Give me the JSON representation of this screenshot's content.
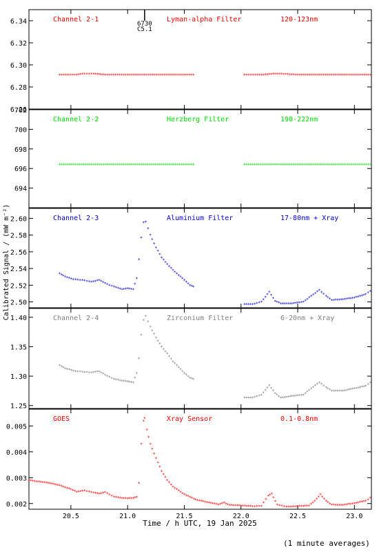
{
  "figure": {
    "ylabel": "Calibrated Signal / (mW m⁻²)",
    "xlabel": "Time / h UTC, 19 Jan 2025",
    "footnote": "(1 minute averages)",
    "event_marker": {
      "x": 21.15,
      "labels": [
        "6730",
        "C5.1"
      ]
    }
  },
  "chart_data": [
    {
      "type": "scatter",
      "title": "Channel 2-1",
      "subtitle": "Lyman-alpha Filter",
      "band": "120-123nm",
      "color": "#ff0000",
      "ylim": [
        6.26,
        6.35
      ],
      "yticks": [
        6.26,
        6.28,
        6.3,
        6.32,
        6.34
      ],
      "ytick_labels": [
        "6.26",
        "6.28",
        "6.30",
        "6.32",
        "6.34"
      ],
      "series": [
        {
          "x": [
            20.4,
            20.55,
            20.62,
            20.7,
            20.8,
            21.0,
            21.2,
            21.4,
            21.58,
            22.03,
            22.2,
            22.3,
            22.5,
            22.8,
            23.14
          ],
          "y": [
            6.291,
            6.291,
            6.292,
            6.292,
            6.291,
            6.291,
            6.291,
            6.291,
            6.291,
            6.291,
            6.291,
            6.292,
            6.291,
            6.291,
            6.291
          ]
        }
      ]
    },
    {
      "type": "scatter",
      "title": "Channel 2-2",
      "subtitle": "Herzberg Filter",
      "band": "190-222nm",
      "color": "#00e000",
      "ylim": [
        692,
        702
      ],
      "yticks": [
        694,
        696,
        698,
        700,
        702
      ],
      "ytick_labels": [
        "694",
        "696",
        "698",
        "700",
        "702"
      ],
      "series": [
        {
          "x": [
            20.4,
            20.7,
            21.0,
            21.3,
            21.58,
            22.03,
            22.3,
            22.6,
            22.9,
            23.14
          ],
          "y": [
            696.4,
            696.4,
            696.4,
            696.4,
            696.4,
            696.4,
            696.4,
            696.4,
            696.4,
            696.4
          ]
        }
      ]
    },
    {
      "type": "scatter",
      "title": "Channel 2-3",
      "subtitle": "Aluminium Filter",
      "band": "17-80nm + Xray",
      "color": "#0000d0",
      "ylim": [
        2.493,
        2.612
      ],
      "yticks": [
        2.5,
        2.52,
        2.54,
        2.56,
        2.58,
        2.6
      ],
      "ytick_labels": [
        "2.50",
        "2.52",
        "2.54",
        "2.56",
        "2.58",
        "2.60"
      ],
      "series": [
        {
          "x": [
            20.4,
            20.45,
            20.52,
            20.6,
            20.68,
            20.75,
            20.82,
            20.88,
            20.95,
            21.0,
            21.05,
            21.08,
            21.1,
            21.12,
            21.14,
            21.16,
            21.2,
            21.25,
            21.3,
            21.35,
            21.4,
            21.45,
            21.5,
            21.55,
            21.58,
            22.03,
            22.1,
            22.18,
            22.25,
            22.3,
            22.35,
            22.45,
            22.55,
            22.62,
            22.69,
            22.75,
            22.8,
            22.9,
            23.0,
            23.1,
            23.14
          ],
          "y": [
            2.534,
            2.53,
            2.527,
            2.526,
            2.524,
            2.526,
            2.521,
            2.518,
            2.515,
            2.516,
            2.515,
            2.528,
            2.551,
            2.577,
            2.595,
            2.596,
            2.58,
            2.565,
            2.553,
            2.545,
            2.538,
            2.532,
            2.526,
            2.52,
            2.518,
            2.497,
            2.497,
            2.5,
            2.512,
            2.501,
            2.498,
            2.498,
            2.5,
            2.507,
            2.514,
            2.507,
            2.502,
            2.503,
            2.505,
            2.509,
            2.513
          ]
        }
      ]
    },
    {
      "type": "scatter",
      "title": "Channel 2-4",
      "subtitle": "Zirconium Filter",
      "band": "6-20nm + Xray",
      "color": "#808080",
      "ylim": [
        1.245,
        1.415
      ],
      "yticks": [
        1.25,
        1.3,
        1.35,
        1.4
      ],
      "ytick_labels": [
        "1.25",
        "1.30",
        "1.35",
        "1.40"
      ],
      "series": [
        {
          "x": [
            20.4,
            20.45,
            20.52,
            20.6,
            20.68,
            20.75,
            20.82,
            20.88,
            20.95,
            21.0,
            21.05,
            21.08,
            21.1,
            21.12,
            21.14,
            21.16,
            21.2,
            21.25,
            21.3,
            21.35,
            21.4,
            21.45,
            21.5,
            21.55,
            21.58,
            22.03,
            22.1,
            22.18,
            22.25,
            22.3,
            22.35,
            22.45,
            22.55,
            22.62,
            22.69,
            22.75,
            22.8,
            22.9,
            23.0,
            23.1,
            23.14
          ],
          "y": [
            1.318,
            1.313,
            1.309,
            1.307,
            1.306,
            1.308,
            1.3,
            1.295,
            1.292,
            1.291,
            1.289,
            1.305,
            1.33,
            1.37,
            1.395,
            1.402,
            1.384,
            1.365,
            1.35,
            1.338,
            1.325,
            1.315,
            1.305,
            1.297,
            1.295,
            1.263,
            1.263,
            1.268,
            1.284,
            1.271,
            1.263,
            1.266,
            1.268,
            1.279,
            1.289,
            1.281,
            1.275,
            1.275,
            1.279,
            1.283,
            1.289
          ]
        }
      ]
    },
    {
      "type": "scatter",
      "title": "GOES",
      "subtitle": "Xray Sensor",
      "band": "0.1-0.8nm",
      "color": "#ff0000",
      "ylim": [
        0.00178,
        0.00565
      ],
      "yticks": [
        0.002,
        0.003,
        0.004,
        0.005
      ],
      "ytick_labels": [
        "0.002",
        "0.003",
        "0.004",
        "0.005"
      ],
      "series": [
        {
          "x": [
            20.13,
            20.2,
            20.3,
            20.4,
            20.5,
            20.55,
            20.62,
            20.7,
            20.75,
            20.8,
            20.88,
            20.95,
            21.0,
            21.05,
            21.08,
            21.1,
            21.12,
            21.14,
            21.15,
            21.17,
            21.2,
            21.25,
            21.3,
            21.35,
            21.4,
            21.5,
            21.6,
            21.7,
            21.8,
            21.85,
            21.9,
            22.0,
            22.1,
            22.18,
            22.24,
            22.27,
            22.32,
            22.4,
            22.5,
            22.6,
            22.65,
            22.7,
            22.75,
            22.8,
            22.9,
            23.0,
            23.1,
            23.14
          ],
          "y": [
            0.0029,
            0.00285,
            0.0028,
            0.0027,
            0.00255,
            0.00245,
            0.0025,
            0.00242,
            0.00238,
            0.00243,
            0.00226,
            0.00221,
            0.0022,
            0.00221,
            0.00225,
            0.0028,
            0.0043,
            0.0052,
            0.0053,
            0.00485,
            0.0043,
            0.00375,
            0.00325,
            0.0029,
            0.00265,
            0.00235,
            0.00215,
            0.00205,
            0.00196,
            0.00203,
            0.00194,
            0.00192,
            0.00189,
            0.0019,
            0.0023,
            0.00238,
            0.00195,
            0.00187,
            0.00189,
            0.00192,
            0.0021,
            0.00235,
            0.0021,
            0.00195,
            0.00194,
            0.00201,
            0.0021,
            0.00222
          ]
        }
      ]
    }
  ],
  "xaxis": {
    "xlim": [
      20.13,
      23.15
    ],
    "ticks": [
      20.5,
      21.0,
      21.5,
      22.0,
      22.5,
      23.0
    ],
    "tick_labels": [
      "20.5",
      "21.0",
      "21.5",
      "22.0",
      "22.5",
      "23.0"
    ]
  }
}
